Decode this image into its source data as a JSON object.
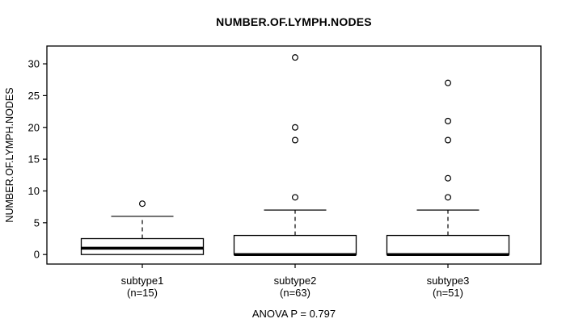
{
  "title": "NUMBER.OF.LYMPH.NODES",
  "chart_data": {
    "type": "boxplot",
    "title": "NUMBER.OF.LYMPH.NODES",
    "ylabel": "NUMBER.OF.LYMPH.NODES",
    "xlabel": "",
    "annotation": "ANOVA P = 0.797",
    "yticks": [
      0,
      5,
      10,
      15,
      20,
      25,
      30
    ],
    "ylim": [
      -1.5,
      32.8
    ],
    "grid": false,
    "legend": "none",
    "groups": [
      {
        "label": "subtype1",
        "sublabel": "(n=15)",
        "n": 15,
        "whisker_low": 0,
        "q1": 0,
        "median": 1,
        "q3": 2.5,
        "whisker_high": 6,
        "outliers": [
          8
        ]
      },
      {
        "label": "subtype2",
        "sublabel": "(n=63)",
        "n": 63,
        "whisker_low": 0,
        "q1": 0,
        "median": 0,
        "q3": 3,
        "whisker_high": 7,
        "outliers": [
          9,
          18,
          20,
          31
        ]
      },
      {
        "label": "subtype3",
        "sublabel": "(n=51)",
        "n": 51,
        "whisker_low": 0,
        "q1": 0,
        "median": 0,
        "q3": 3,
        "whisker_high": 7,
        "outliers": [
          9,
          12,
          18,
          21,
          27
        ]
      }
    ],
    "colors": {
      "stroke": "#000000",
      "box_fill": "#ffffff",
      "background": "#ffffff"
    }
  }
}
